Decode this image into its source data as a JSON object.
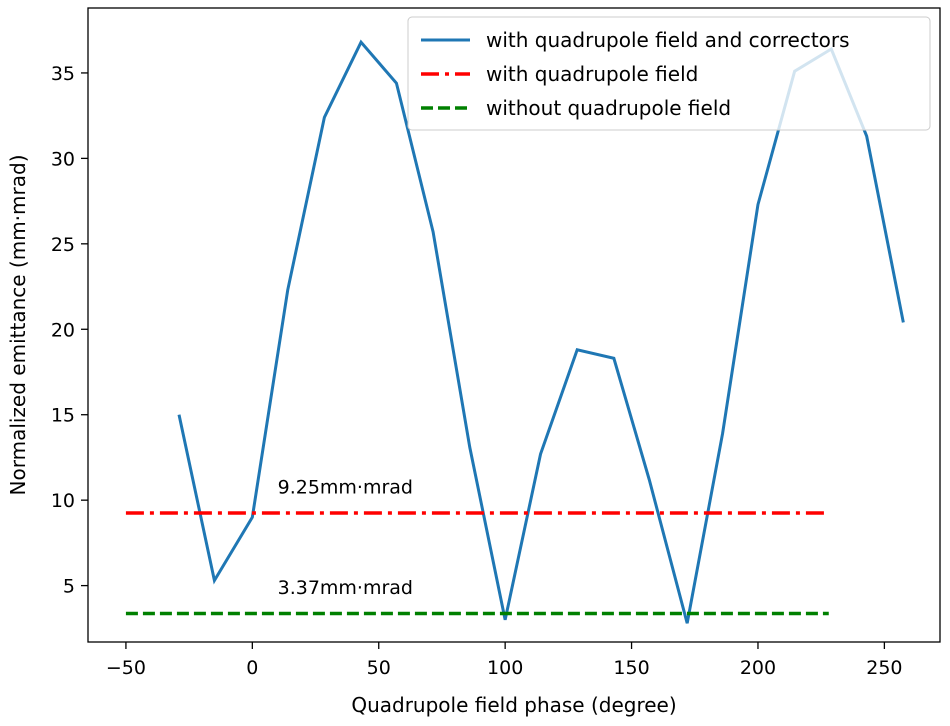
{
  "chart_data": {
    "type": "line",
    "title": "",
    "xlabel": "Quadrupole field phase (degree)",
    "ylabel": "Normalized emittance (mm·mrad)",
    "xlim": [
      -65,
      272
    ],
    "ylim": [
      1.7,
      38.8
    ],
    "xticks": [
      -50,
      0,
      50,
      100,
      150,
      200,
      250
    ],
    "xtick_labels": [
      "−50",
      "0",
      "50",
      "100",
      "150",
      "200",
      "250"
    ],
    "yticks": [
      5,
      10,
      15,
      20,
      25,
      30,
      35
    ],
    "ytick_labels": [
      "5",
      "10",
      "15",
      "20",
      "25",
      "30",
      "35"
    ],
    "grid": false,
    "legend_position": "top-right",
    "series": [
      {
        "name": "with quadrupole field and correctors",
        "style": "solid",
        "color": "#1f77b4",
        "x": [
          -29,
          -15,
          0,
          14,
          28.5,
          43,
          57,
          71.5,
          86,
          100,
          114,
          128.5,
          143,
          157,
          172,
          186,
          200,
          214.5,
          229,
          243,
          257.5
        ],
        "y": [
          15.0,
          5.3,
          9.0,
          22.3,
          32.4,
          36.8,
          34.4,
          25.7,
          13.1,
          3.0,
          12.7,
          18.8,
          18.3,
          11.2,
          2.8,
          13.9,
          27.3,
          35.1,
          36.4,
          31.3,
          20.4
        ]
      },
      {
        "name": "with quadrupole field",
        "style": "dashdot",
        "color": "#ff0000",
        "x": [
          -50,
          228
        ],
        "y": [
          9.25,
          9.25
        ]
      },
      {
        "name": "without quadrupole field",
        "style": "dashed",
        "color": "#008000",
        "x": [
          -50,
          228
        ],
        "y": [
          3.37,
          3.37
        ]
      }
    ],
    "annotations": [
      {
        "text": "9.25mm·mrad",
        "x": 10,
        "y": 10.4
      },
      {
        "text": "3.37mm·mrad",
        "x": 10,
        "y": 4.5
      }
    ]
  }
}
